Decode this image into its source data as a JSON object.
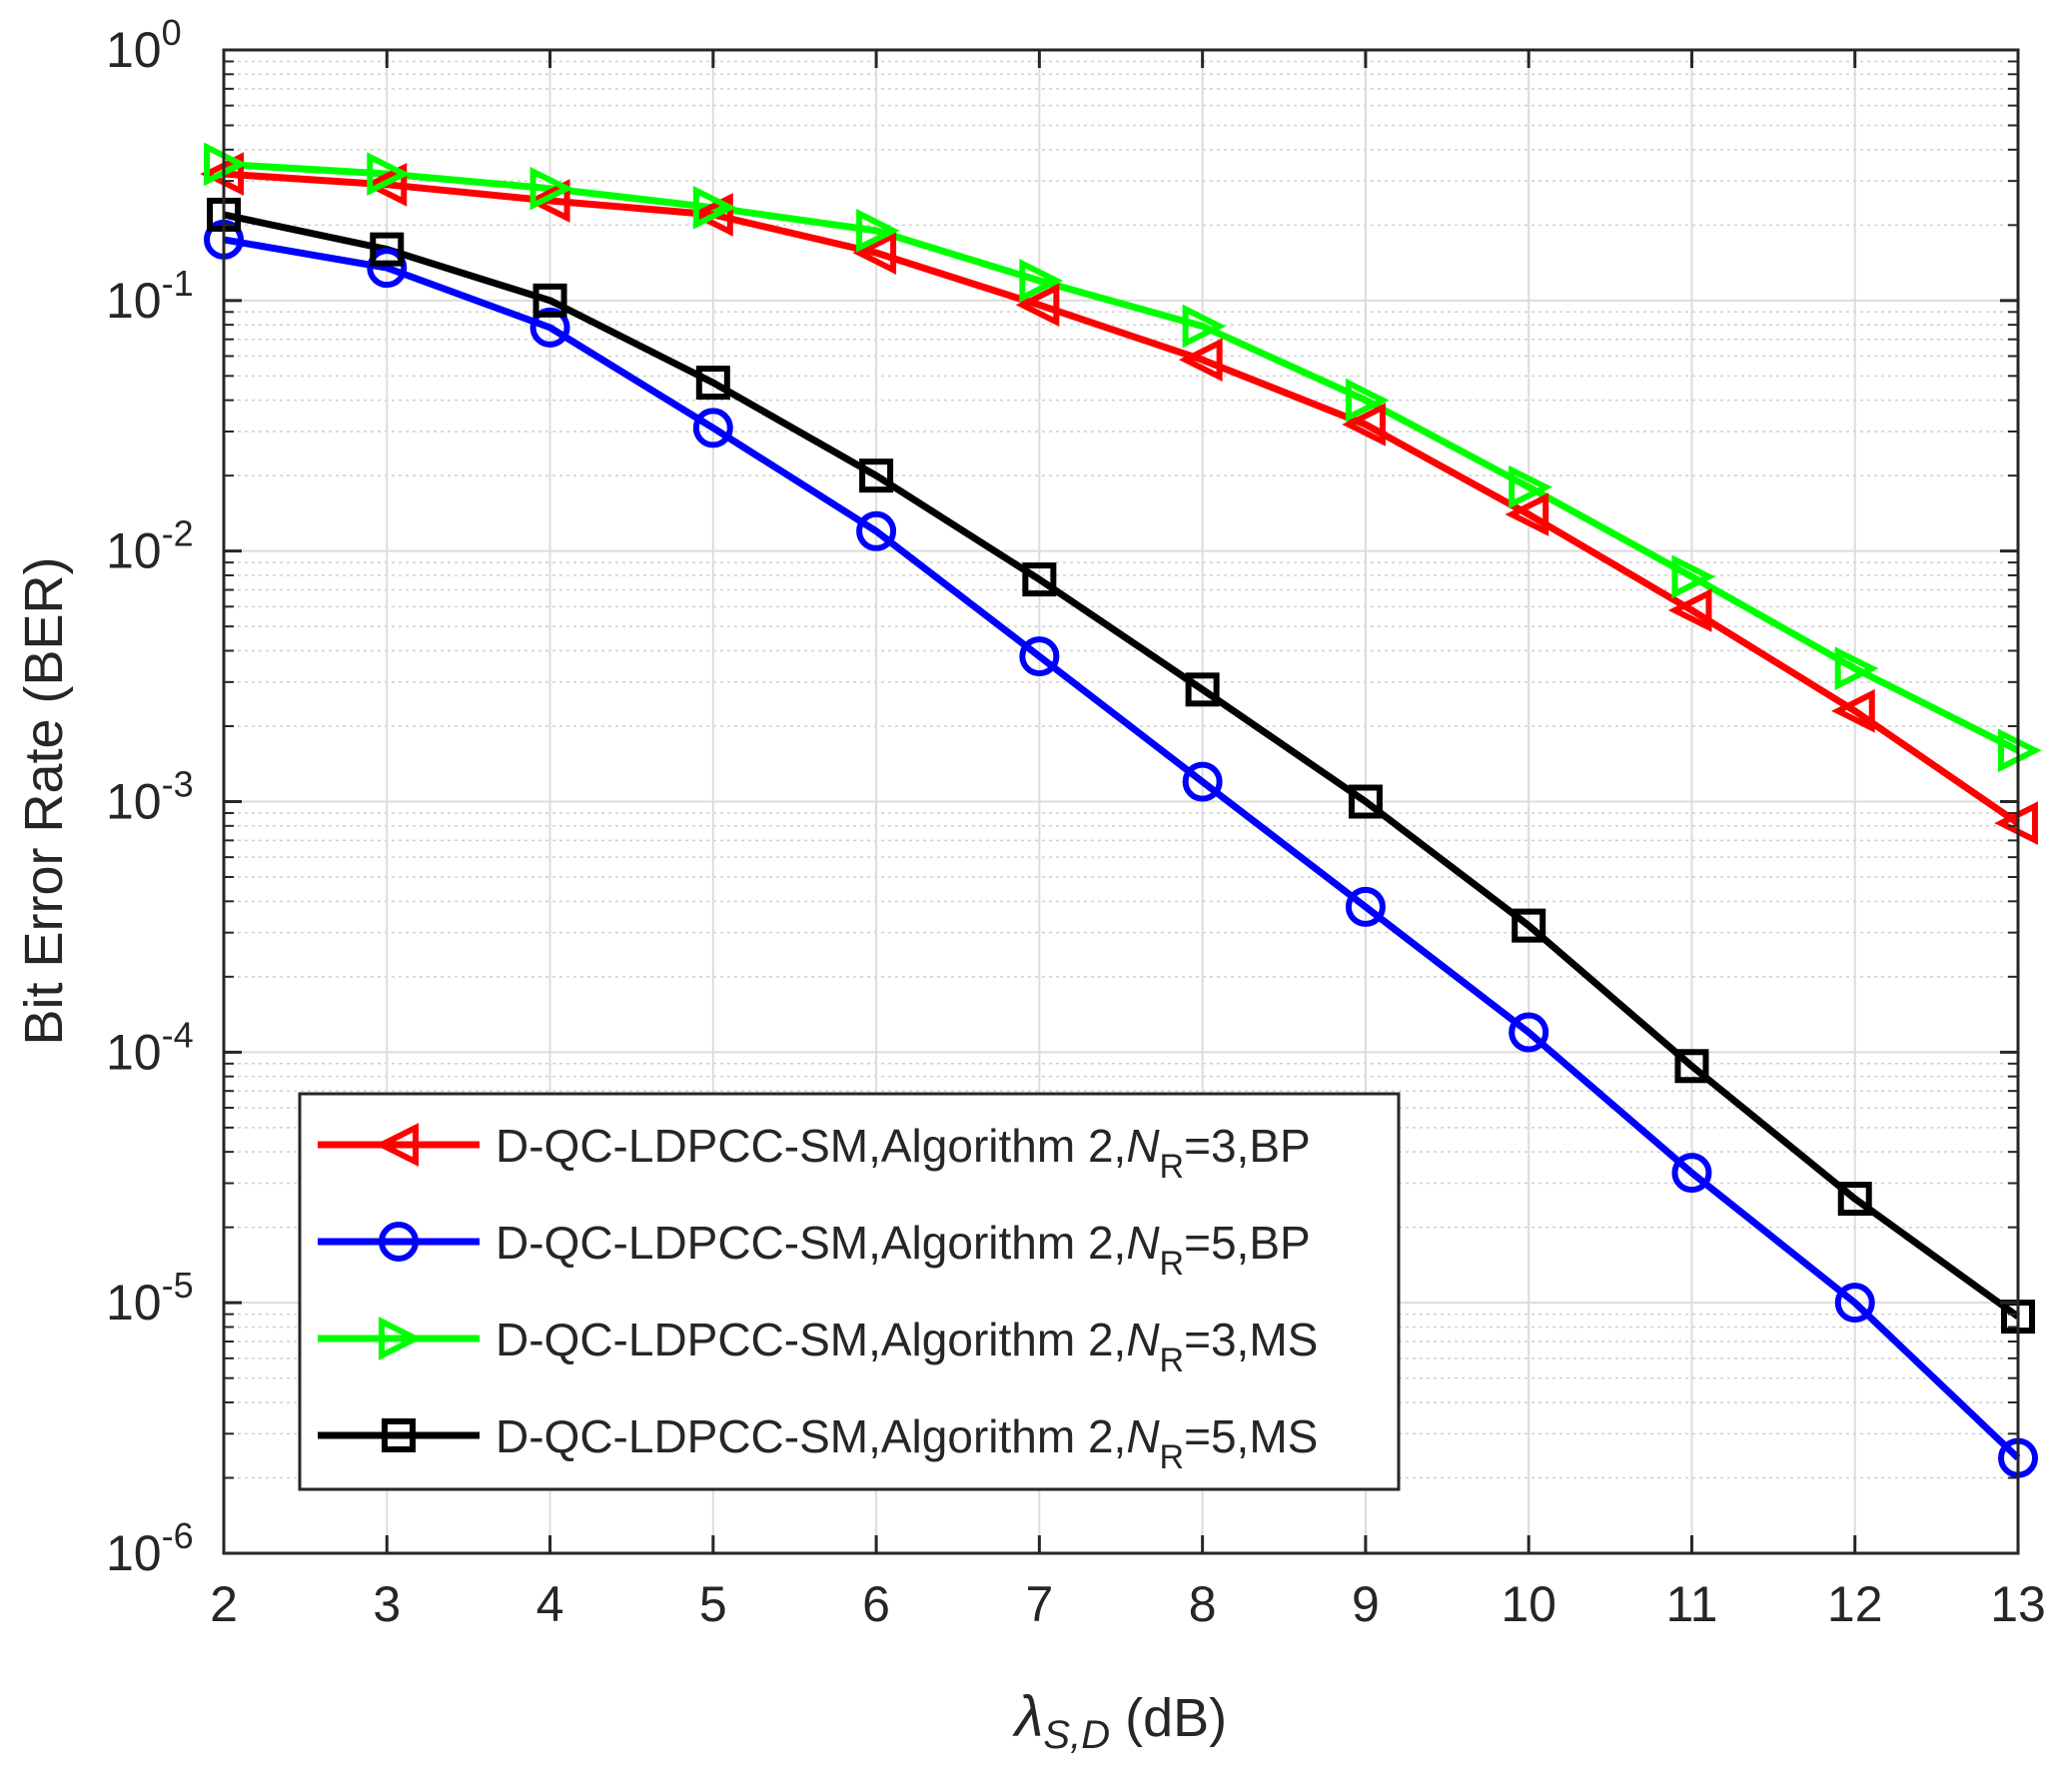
{
  "chart_data": {
    "type": "line",
    "xscale": "linear",
    "yscale": "log",
    "xlabel": {
      "symbol": "λ",
      "subscript": "S,D",
      "unit": " (dB)"
    },
    "ylabel": "Bit Error Rate (BER)",
    "xlim": [
      2,
      13
    ],
    "ylim": [
      1e-06,
      1
    ],
    "x_ticks": [
      2,
      3,
      4,
      5,
      6,
      7,
      8,
      9,
      10,
      11,
      12,
      13
    ],
    "y_ticks": [
      {
        "value": 1,
        "base": "10",
        "exp": "0"
      },
      {
        "value": 0.1,
        "base": "10",
        "exp": "-1"
      },
      {
        "value": 0.01,
        "base": "10",
        "exp": "-2"
      },
      {
        "value": 0.001,
        "base": "10",
        "exp": "-3"
      },
      {
        "value": 0.0001,
        "base": "10",
        "exp": "-4"
      },
      {
        "value": 1e-05,
        "base": "10",
        "exp": "-5"
      },
      {
        "value": 1e-06,
        "base": "10",
        "exp": "-6"
      }
    ],
    "grid": true,
    "legend_position": "bottom-left",
    "x": [
      2,
      3,
      4,
      5,
      6,
      7,
      8,
      9,
      10,
      11,
      12,
      13
    ],
    "series": [
      {
        "name": "D-QC-LDPCC-SM,Algorithm 2,N_R=3,BP",
        "legend_prefix": "D-QC-LDPCC-SM,Algorithm 2,",
        "legend_var": "N",
        "legend_sub": "R",
        "legend_suffix": "=3,BP",
        "color": "#ff0000",
        "marker": "triangle-left",
        "values": [
          0.32,
          0.29,
          0.25,
          0.22,
          0.155,
          0.096,
          0.058,
          0.032,
          0.014,
          0.0058,
          0.0023,
          0.00082
        ]
      },
      {
        "name": "D-QC-LDPCC-SM,Algorithm 2,N_R=5,BP",
        "legend_prefix": "D-QC-LDPCC-SM,Algorithm 2,",
        "legend_var": "N",
        "legend_sub": "R",
        "legend_suffix": "=5,BP",
        "color": "#0000ff",
        "marker": "circle",
        "values": [
          0.175,
          0.135,
          0.078,
          0.031,
          0.012,
          0.0038,
          0.0012,
          0.00038,
          0.00012,
          3.3e-05,
          1e-05,
          2.4e-06
        ]
      },
      {
        "name": "D-QC-LDPCC-SM,Algorithm 2,N_R=3,MS",
        "legend_prefix": "D-QC-LDPCC-SM,Algorithm 2,",
        "legend_var": "N",
        "legend_sub": "R",
        "legend_suffix": "=3,MS",
        "color": "#00ff00",
        "marker": "triangle-right",
        "values": [
          0.35,
          0.32,
          0.28,
          0.235,
          0.19,
          0.12,
          0.079,
          0.04,
          0.018,
          0.0079,
          0.0034,
          0.0016
        ]
      },
      {
        "name": "D-QC-LDPCC-SM,Algorithm 2,N_R=5,MS",
        "legend_prefix": "D-QC-LDPCC-SM,Algorithm 2,",
        "legend_var": "N",
        "legend_sub": "R",
        "legend_suffix": "=5,MS",
        "color": "#000000",
        "marker": "square",
        "values": [
          0.22,
          0.16,
          0.1,
          0.047,
          0.02,
          0.0077,
          0.0028,
          0.001,
          0.00032,
          8.8e-05,
          2.6e-05,
          8.8e-06
        ]
      }
    ]
  }
}
